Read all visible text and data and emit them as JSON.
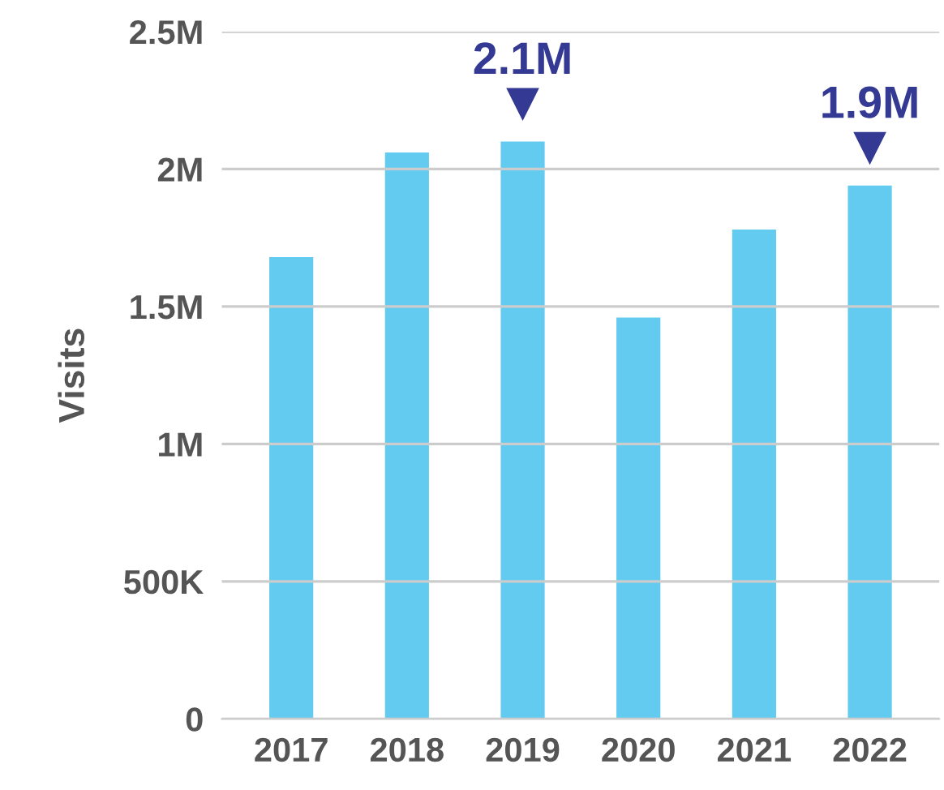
{
  "chart_data": {
    "type": "bar",
    "ylabel": "Visits",
    "categories": [
      "2017",
      "2018",
      "2019",
      "2020",
      "2021",
      "2022"
    ],
    "values": [
      1680000,
      2060000,
      2100000,
      1460000,
      1780000,
      1940000
    ],
    "value_labels": [
      null,
      null,
      "2.1M",
      null,
      null,
      "1.9M"
    ],
    "color": "#63cbf0",
    "ylim": [
      0,
      2500000
    ],
    "yticks": [
      0,
      {
        "value": 500000,
        "label": "500K"
      },
      {
        "value": 1000000,
        "label": "1M"
      },
      {
        "value": 1500000,
        "label": "1.5M"
      },
      {
        "value": 2000000,
        "label": "2M"
      },
      {
        "value": 2500000,
        "label": "2.5M"
      }
    ],
    "grid": "y"
  }
}
